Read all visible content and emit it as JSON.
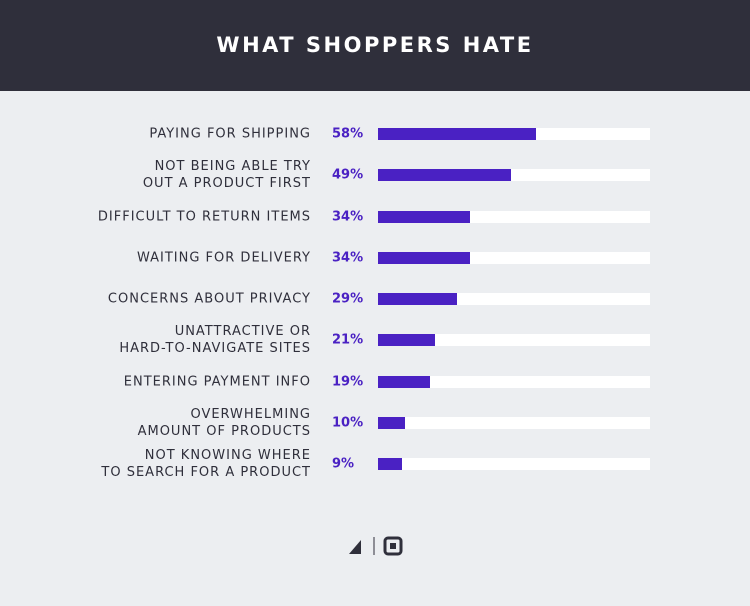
{
  "chart_data": {
    "type": "bar",
    "orientation": "horizontal",
    "title": "WHAT SHOPPERS HATE",
    "categories": [
      "PAYING FOR SHIPPING",
      "NOT BEING ABLE TRY\nOUT A PRODUCT FIRST",
      "DIFFICULT TO RETURN ITEMS",
      "WAITING FOR DELIVERY",
      "CONCERNS ABOUT PRIVACY",
      "UNATTRACTIVE OR\nHARD-TO-NAVIGATE SITES",
      "ENTERING PAYMENT INFO",
      "OVERWHELMING\nAMOUNT OF PRODUCTS",
      "NOT KNOWING WHERE\nTO SEARCH FOR A PRODUCT"
    ],
    "values": [
      58,
      49,
      34,
      34,
      29,
      21,
      19,
      10,
      9
    ],
    "value_labels": [
      "58%",
      "49%",
      "34%",
      "34%",
      "29%",
      "21%",
      "19%",
      "10%",
      "9%"
    ],
    "color": "#4a21c3",
    "track_color": "#ffffff",
    "xlim": [
      0,
      100
    ]
  }
}
